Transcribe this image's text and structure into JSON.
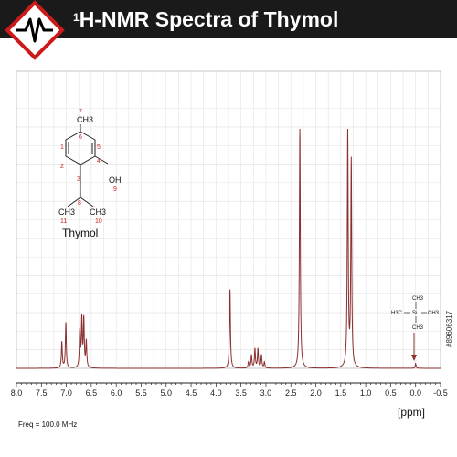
{
  "header": {
    "title_sup": "1",
    "title_text": "H-NMR Spectra of Thymol",
    "logo_icon": "nmr-diamond-icon"
  },
  "molecule": {
    "name": "Thymol",
    "groups": [
      "CH3",
      "OH",
      "CH3",
      "CH3"
    ],
    "atom_numbers": [
      "7",
      "6",
      "1",
      "5",
      "2",
      "4",
      "3",
      "9",
      "8",
      "11",
      "10"
    ]
  },
  "reference": {
    "name": "TMS",
    "labels": [
      "CH3",
      "H3C",
      "Si",
      "CH3",
      "CH3"
    ]
  },
  "footer": {
    "freq": "Freq = 100.0 MHz",
    "unit": "[ppm]",
    "watermark": "#89606317"
  },
  "chart_data": {
    "type": "line",
    "title": "1H-NMR Spectra of Thymol",
    "xlabel": "[ppm]",
    "x_reversed": true,
    "xlim": [
      8.0,
      -0.5
    ],
    "ylim": [
      0,
      1.0
    ],
    "xticks": [
      "8.0",
      "7.5",
      "7.0",
      "6.5",
      "6.0",
      "5.5",
      "5.0",
      "4.5",
      "4.0",
      "3.5",
      "3.0",
      "2.5",
      "2.0",
      "1.5",
      "1.0",
      "0.5",
      "0.0",
      "-0.5"
    ],
    "grid": true,
    "line_color": "#8b2e2e",
    "peaks": [
      {
        "ppm": 7.09,
        "height": 0.11
      },
      {
        "ppm": 7.01,
        "height": 0.19
      },
      {
        "ppm": 6.73,
        "height": 0.15
      },
      {
        "ppm": 6.69,
        "height": 0.2
      },
      {
        "ppm": 6.65,
        "height": 0.2
      },
      {
        "ppm": 6.6,
        "height": 0.11
      },
      {
        "ppm": 3.72,
        "height": 0.33
      },
      {
        "ppm": 3.35,
        "height": 0.025
      },
      {
        "ppm": 3.29,
        "height": 0.055
      },
      {
        "ppm": 3.22,
        "height": 0.08
      },
      {
        "ppm": 3.16,
        "height": 0.08
      },
      {
        "ppm": 3.09,
        "height": 0.055
      },
      {
        "ppm": 3.03,
        "height": 0.025
      },
      {
        "ppm": 2.32,
        "height": 1.0
      },
      {
        "ppm": 1.36,
        "height": 0.98
      },
      {
        "ppm": 1.29,
        "height": 0.86
      },
      {
        "ppm": 0.0,
        "height": 0.02
      }
    ],
    "annotations": [
      "TMS at 0.0 ppm"
    ]
  }
}
